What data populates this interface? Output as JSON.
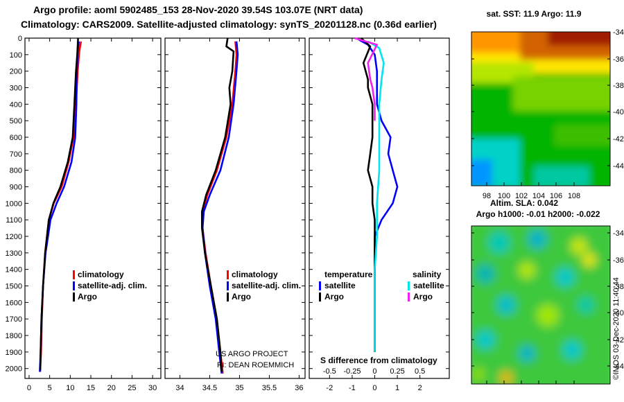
{
  "title": {
    "line1": "Argo profile: aoml 5902485_153 28-Nov-2020 39.54S 103.07E (NRT data)",
    "line2": "Climatology: CARS2009. Satellite-adjusted climatology: synTS_20201128.nc (0.36d earlier)"
  },
  "footer": {
    "project": "US ARGO PROJECT",
    "pi": "PI: DEAN ROEMMICH",
    "stamp": "©IMOS 03-Dec-2020 11:40:44"
  },
  "colors": {
    "climatology": "#ff0000",
    "satellite": "#0000ff",
    "argo": "#000000",
    "sat_salinity": "#00e5ee",
    "argo_salinity": "#ee22ee"
  },
  "chart_data": [
    {
      "type": "line",
      "panel": "temperature",
      "y_ticks": [
        "0",
        "100",
        "200",
        "300",
        "400",
        "500",
        "600",
        "700",
        "800",
        "900",
        "1000",
        "1100",
        "1200",
        "1300",
        "1400",
        "1500",
        "1600",
        "1700",
        "1800",
        "1900",
        "2000"
      ],
      "x_ticks": [
        "0",
        "5",
        "10",
        "15",
        "20",
        "25",
        "30"
      ],
      "xlim": [
        -1,
        32
      ],
      "ylim": [
        2060,
        0
      ],
      "legend": [
        "climatology",
        "satellite-adj. clim.",
        "Argo"
      ],
      "series": [
        {
          "name": "climatology",
          "color": "#ff0000",
          "points": [
            [
              12.6,
              20
            ],
            [
              12.2,
              80
            ],
            [
              11.8,
              200
            ],
            [
              11.4,
              400
            ],
            [
              10.8,
              600
            ],
            [
              9.6,
              750
            ],
            [
              7.9,
              900
            ],
            [
              6.0,
              1000
            ],
            [
              4.8,
              1100
            ],
            [
              3.9,
              1300
            ],
            [
              3.4,
              1500
            ],
            [
              3.1,
              1700
            ],
            [
              2.9,
              1900
            ],
            [
              2.7,
              2020
            ]
          ]
        },
        {
          "name": "satellite-adj. clim.",
          "color": "#0000ff",
          "points": [
            [
              12.1,
              20
            ],
            [
              11.8,
              80
            ],
            [
              11.6,
              200
            ],
            [
              11.5,
              400
            ],
            [
              11.2,
              600
            ],
            [
              10.3,
              750
            ],
            [
              8.5,
              900
            ],
            [
              6.7,
              1000
            ],
            [
              5.2,
              1100
            ],
            [
              4.0,
              1300
            ],
            [
              3.4,
              1500
            ],
            [
              3.0,
              1700
            ],
            [
              2.8,
              1900
            ],
            [
              2.6,
              2020
            ]
          ]
        },
        {
          "name": "Argo",
          "color": "#000000",
          "points": [
            [
              11.9,
              0
            ],
            [
              11.7,
              100
            ],
            [
              11.4,
              200
            ],
            [
              11.0,
              400
            ],
            [
              10.6,
              600
            ],
            [
              9.4,
              750
            ],
            [
              7.6,
              900
            ],
            [
              5.9,
              1000
            ],
            [
              4.8,
              1100
            ],
            [
              3.9,
              1300
            ],
            [
              3.4,
              1500
            ],
            [
              3.0,
              1700
            ],
            [
              2.8,
              1900
            ],
            [
              2.7,
              2010
            ]
          ]
        }
      ]
    },
    {
      "type": "line",
      "panel": "salinity",
      "x_ticks": [
        "34",
        "34.5",
        "35",
        "35.5",
        "36"
      ],
      "xlim": [
        33.75,
        36.1
      ],
      "ylim": [
        2060,
        0
      ],
      "legend": [
        "climatology",
        "satellite-adj. clim.",
        "Argo"
      ],
      "series": [
        {
          "name": "climatology",
          "color": "#ff0000",
          "points": [
            [
              34.93,
              20
            ],
            [
              34.95,
              100
            ],
            [
              34.93,
              200
            ],
            [
              34.88,
              400
            ],
            [
              34.78,
              600
            ],
            [
              34.62,
              800
            ],
            [
              34.46,
              950
            ],
            [
              34.38,
              1050
            ],
            [
              34.38,
              1150
            ],
            [
              34.43,
              1300
            ],
            [
              34.52,
              1500
            ],
            [
              34.62,
              1700
            ],
            [
              34.68,
              1900
            ],
            [
              34.72,
              2030
            ]
          ]
        },
        {
          "name": "satellite-adj. clim.",
          "color": "#0000ff",
          "points": [
            [
              34.95,
              20
            ],
            [
              34.97,
              100
            ],
            [
              34.95,
              200
            ],
            [
              34.9,
              400
            ],
            [
              34.82,
              600
            ],
            [
              34.68,
              800
            ],
            [
              34.5,
              950
            ],
            [
              34.4,
              1050
            ],
            [
              34.38,
              1150
            ],
            [
              34.42,
              1300
            ],
            [
              34.5,
              1500
            ],
            [
              34.6,
              1700
            ],
            [
              34.66,
              1900
            ],
            [
              34.7,
              2030
            ]
          ]
        },
        {
          "name": "Argo",
          "color": "#000000",
          "points": [
            [
              34.8,
              0
            ],
            [
              34.78,
              50
            ],
            [
              34.9,
              80
            ],
            [
              34.88,
              200
            ],
            [
              34.83,
              300
            ],
            [
              34.85,
              400
            ],
            [
              34.76,
              600
            ],
            [
              34.6,
              800
            ],
            [
              34.44,
              950
            ],
            [
              34.37,
              1050
            ],
            [
              34.37,
              1150
            ],
            [
              34.42,
              1300
            ],
            [
              34.52,
              1500
            ],
            [
              34.62,
              1700
            ],
            [
              34.68,
              1900
            ],
            [
              34.7,
              2020
            ]
          ]
        }
      ]
    },
    {
      "type": "line",
      "panel": "difference",
      "bottom_label": "S difference from climatology",
      "x_ticks": [
        "-2",
        "-1",
        "0",
        "1",
        "2"
      ],
      "x_ticks_s": [
        "-0.5",
        "-0.25",
        "0",
        "0.25",
        "0.5"
      ],
      "xlim": [
        -2.9,
        3.3
      ],
      "ylim": [
        2060,
        0
      ],
      "legend": {
        "temperature_header": "temperature",
        "salinity_header": "salinity",
        "temp_satellite": "satellite",
        "temp_argo": "Argo",
        "sal_satellite": "satellite",
        "sal_argo": "Argo"
      },
      "series": [
        {
          "name": "temperature satellite",
          "color": "#0000ff",
          "points": [
            [
              -0.7,
              10
            ],
            [
              -0.3,
              40
            ],
            [
              0,
              100
            ],
            [
              0.1,
              200
            ],
            [
              0.1,
              400
            ],
            [
              0.3,
              500
            ],
            [
              0.7,
              600
            ],
            [
              0.6,
              700
            ],
            [
              0.8,
              800
            ],
            [
              1.0,
              900
            ],
            [
              0.8,
              1000
            ],
            [
              0.3,
              1100
            ],
            [
              0,
              1200
            ],
            [
              0,
              1500
            ],
            [
              0,
              1900
            ]
          ]
        },
        {
          "name": "temperature Argo",
          "color": "#000000",
          "points": [
            [
              -0.6,
              0
            ],
            [
              -0.2,
              50
            ],
            [
              -0.5,
              150
            ],
            [
              -0.3,
              250
            ],
            [
              -0.3,
              300
            ],
            [
              -0.1,
              400
            ],
            [
              -0.1,
              600
            ],
            [
              -0.2,
              700
            ],
            [
              -0.3,
              800
            ],
            [
              -0.1,
              900
            ],
            [
              -0.1,
              1000
            ],
            [
              0,
              1100
            ],
            [
              0,
              1300
            ],
            [
              0,
              1900
            ]
          ]
        },
        {
          "name": "salinity satellite",
          "color": "#00e5ee",
          "points": [
            [
              -0.3,
              20
            ],
            [
              0.2,
              60
            ],
            [
              0.4,
              150
            ],
            [
              0.3,
              250
            ],
            [
              0.2,
              400
            ],
            [
              0.2,
              600
            ],
            [
              0.2,
              800
            ],
            [
              0.1,
              1000
            ],
            [
              0.1,
              1200
            ],
            [
              0,
              1400
            ],
            [
              0,
              1700
            ],
            [
              0,
              1900
            ]
          ]
        },
        {
          "name": "salinity Argo",
          "color": "#ee22ee",
          "points": [
            [
              -0.9,
              0
            ],
            [
              0.1,
              40
            ],
            [
              -0.3,
              150
            ],
            [
              -0.2,
              250
            ],
            [
              -0.1,
              300
            ],
            [
              0,
              400
            ],
            [
              0,
              500
            ]
          ]
        }
      ]
    },
    {
      "type": "heatmap",
      "panel": "map-sst",
      "title": "sat. SST: 11.9 Argo: 11.9",
      "y_ticks": [
        "-34",
        "-36",
        "-38",
        "-40",
        "-42",
        "-44"
      ],
      "x_ticks": [
        "98",
        "100",
        "102",
        "104",
        "106",
        "108"
      ]
    },
    {
      "type": "heatmap",
      "panel": "map-sla",
      "title1": "Altim. SLA: 0.042",
      "title2": "Argo h1000: -0.01 h2000: -0.022",
      "y_ticks": [
        "-34",
        "-36",
        "-38",
        "-40",
        "-42",
        "-44"
      ]
    }
  ]
}
